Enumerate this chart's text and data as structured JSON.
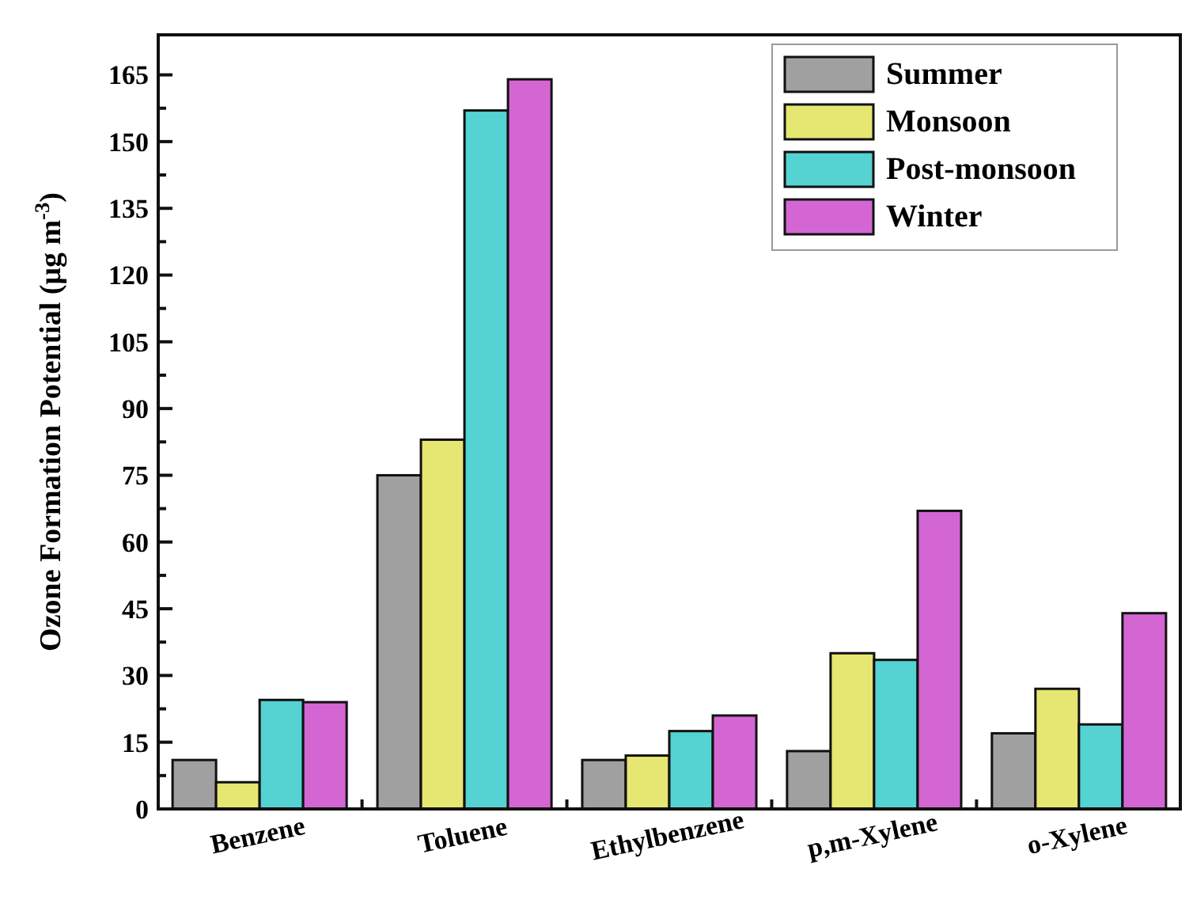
{
  "chart_data": {
    "type": "bar",
    "ylabel": "Ozone Formation Potential (μg m$^{-3}$)",
    "categories": [
      "Benzene",
      "Toluene",
      "Ethylbenzene",
      "p,m-Xylene",
      "o-Xylene"
    ],
    "series": [
      {
        "name": "Summer",
        "color": "#a0a0a0",
        "values": [
          11,
          75,
          11,
          13,
          17
        ]
      },
      {
        "name": "Monsoon",
        "color": "#e6e672",
        "values": [
          6,
          83,
          12,
          35,
          27
        ]
      },
      {
        "name": "Post-monsoon",
        "color": "#55d2d2",
        "values": [
          24.5,
          157,
          17.5,
          33.5,
          19
        ]
      },
      {
        "name": "Winter",
        "color": "#d466d4",
        "values": [
          24,
          164,
          21,
          67,
          44
        ]
      }
    ],
    "ylim": [
      0,
      174
    ],
    "yticks": [
      0,
      {
        "value": 7.5,
        "label": null
      },
      15,
      {
        "value": 22.5,
        "label": null
      },
      30,
      {
        "value": 37.5,
        "label": null
      },
      45,
      {
        "value": 52.5,
        "label": null
      },
      60,
      {
        "value": 67.5,
        "label": null
      },
      75,
      {
        "value": 82.5,
        "label": null
      },
      90,
      {
        "value": 97.5,
        "label": null
      },
      105,
      {
        "value": 112.5,
        "label": null
      },
      120,
      {
        "value": 127.5,
        "label": null
      },
      135,
      {
        "value": 142.5,
        "label": null
      },
      150,
      {
        "value": 157.5,
        "label": null
      },
      165
    ],
    "legend": "top right",
    "grid": false
  }
}
